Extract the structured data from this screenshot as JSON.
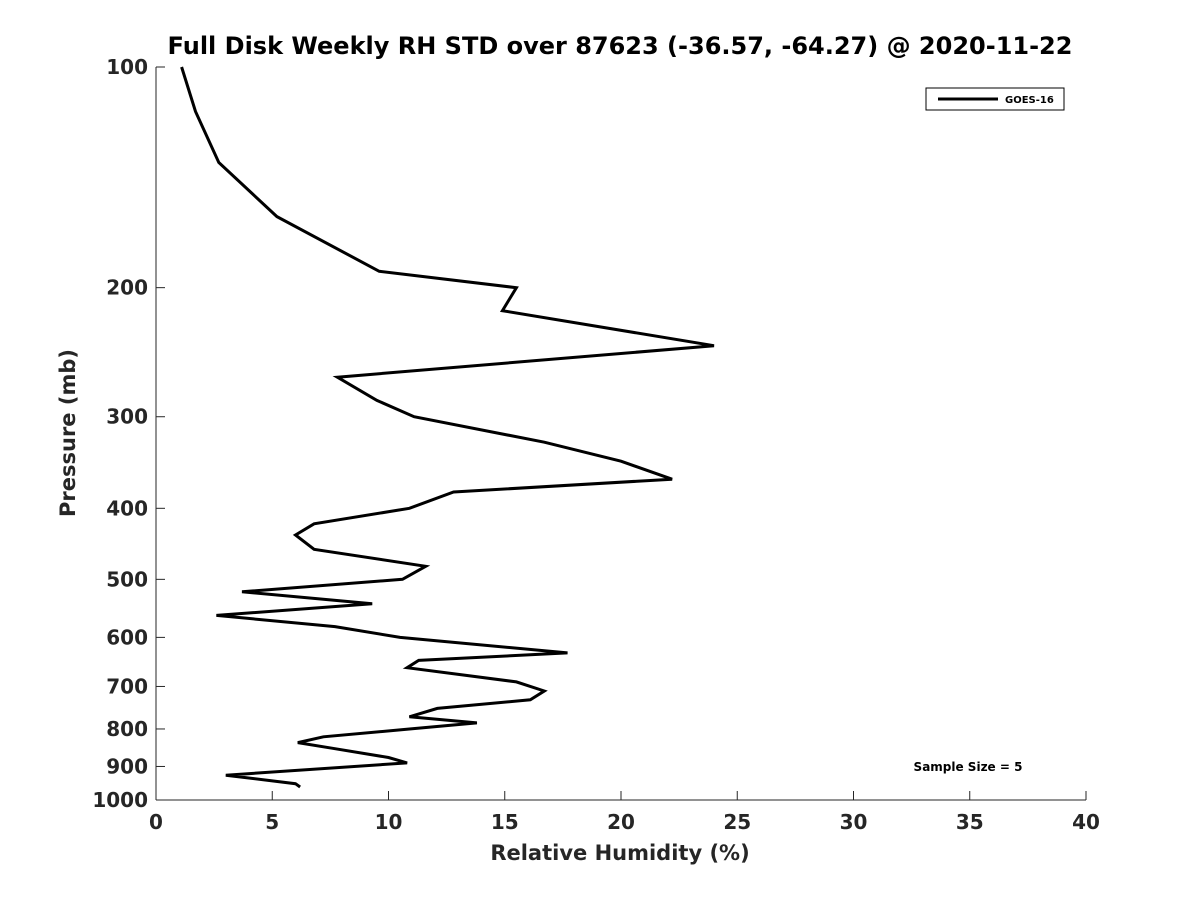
{
  "chart_data": {
    "type": "line",
    "title": "Full Disk Weekly RH STD over 87623 (-36.57, -64.27) @ 2020-11-22",
    "xlabel": "Relative Humidity (%)",
    "ylabel": "Pressure (mb)",
    "xlim": [
      0,
      40
    ],
    "ylim": [
      100,
      1000
    ],
    "y_scale": "log",
    "y_reversed": true,
    "xticks": [
      0,
      5,
      10,
      15,
      20,
      25,
      30,
      35,
      40
    ],
    "yticks": [
      100,
      200,
      300,
      400,
      500,
      600,
      700,
      800,
      900,
      1000
    ],
    "grid": false,
    "legend_position": "top-right",
    "annotation": "Sample Size = 5",
    "series": [
      {
        "name": "GOES-16",
        "color": "#000000",
        "points": [
          [
            1.1,
            100
          ],
          [
            1.7,
            115
          ],
          [
            2.7,
            135
          ],
          [
            5.2,
            160
          ],
          [
            9.6,
            190
          ],
          [
            15.5,
            200
          ],
          [
            14.9,
            215
          ],
          [
            24.0,
            240
          ],
          [
            7.8,
            265
          ],
          [
            9.5,
            285
          ],
          [
            11.1,
            300
          ],
          [
            16.7,
            325
          ],
          [
            20.0,
            345
          ],
          [
            22.2,
            365
          ],
          [
            12.8,
            380
          ],
          [
            10.9,
            400
          ],
          [
            6.8,
            420
          ],
          [
            6.0,
            435
          ],
          [
            6.8,
            455
          ],
          [
            11.6,
            480
          ],
          [
            10.6,
            500
          ],
          [
            3.7,
            520
          ],
          [
            9.3,
            540
          ],
          [
            2.6,
            560
          ],
          [
            7.7,
            580
          ],
          [
            10.5,
            600
          ],
          [
            17.7,
            630
          ],
          [
            11.3,
            645
          ],
          [
            10.8,
            660
          ],
          [
            15.5,
            690
          ],
          [
            16.7,
            710
          ],
          [
            16.1,
            730
          ],
          [
            12.1,
            750
          ],
          [
            10.9,
            770
          ],
          [
            13.8,
            785
          ],
          [
            10.9,
            800
          ],
          [
            7.2,
            820
          ],
          [
            6.1,
            835
          ],
          [
            7.6,
            850
          ],
          [
            10.0,
            875
          ],
          [
            10.8,
            890
          ],
          [
            3.0,
            925
          ],
          [
            6.0,
            950
          ],
          [
            6.2,
            960
          ]
        ]
      }
    ]
  }
}
